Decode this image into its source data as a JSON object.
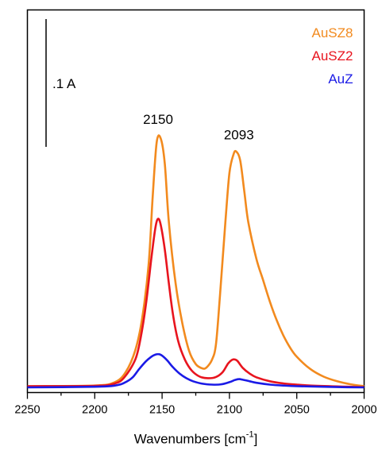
{
  "chart_data": {
    "type": "line",
    "xlabel": "Wavenumbers [cm",
    "xlabel_sup": "-1",
    "xlabel_end": "]",
    "ylabel": "",
    "xlim": [
      2250,
      2000
    ],
    "x_reversed": true,
    "ylim": [
      0,
      1
    ],
    "y_ticks_shown": false,
    "x_ticks": [
      2250,
      2200,
      2150,
      2100,
      2050,
      2000
    ],
    "x_tick_labels": [
      "2250",
      "2200",
      "2150",
      "2100",
      "2050",
      "2000"
    ],
    "legend_placement": "top-right",
    "scale_bar": {
      "label": ".1 A",
      "y_from": 0.66,
      "y_to": 0.96
    },
    "annotations": [
      {
        "text": "2150",
        "x": 2153,
        "y": 0.86
      },
      {
        "text": "2093",
        "x": 2093,
        "y": 0.81
      }
    ],
    "series": [
      {
        "name": "AuSZ8",
        "color": "#f28a1e",
        "x": [
          2250,
          2200,
          2185,
          2177,
          2170,
          2165,
          2160,
          2157,
          2154,
          2151,
          2148,
          2145,
          2140,
          2135,
          2130,
          2125,
          2120,
          2117,
          2113,
          2110,
          2107,
          2103,
          2100,
          2097,
          2095,
          2092,
          2089,
          2086,
          2080,
          2075,
          2070,
          2065,
          2060,
          2055,
          2050,
          2040,
          2030,
          2020,
          2010,
          2000
        ],
        "y": [
          0.004,
          0.006,
          0.017,
          0.05,
          0.12,
          0.22,
          0.4,
          0.62,
          0.8,
          0.812,
          0.73,
          0.54,
          0.34,
          0.21,
          0.12,
          0.076,
          0.062,
          0.065,
          0.09,
          0.14,
          0.3,
          0.54,
          0.7,
          0.76,
          0.77,
          0.74,
          0.64,
          0.54,
          0.42,
          0.35,
          0.28,
          0.22,
          0.17,
          0.13,
          0.1,
          0.06,
          0.035,
          0.02,
          0.01,
          0.004
        ]
      },
      {
        "name": "AuSZ2",
        "color": "#e8141e",
        "x": [
          2250,
          2200,
          2185,
          2178,
          2170,
          2166,
          2162,
          2158,
          2155,
          2153,
          2151,
          2148,
          2145,
          2142,
          2138,
          2133,
          2128,
          2122,
          2116,
          2110,
          2105,
          2101,
          2098,
          2096,
          2094,
          2090,
          2085,
          2080,
          2070,
          2060,
          2050,
          2040,
          2020,
          2000
        ],
        "y": [
          0.004,
          0.005,
          0.013,
          0.033,
          0.09,
          0.16,
          0.27,
          0.42,
          0.52,
          0.55,
          0.53,
          0.45,
          0.34,
          0.24,
          0.15,
          0.09,
          0.055,
          0.035,
          0.03,
          0.034,
          0.05,
          0.078,
          0.09,
          0.091,
          0.086,
          0.063,
          0.045,
          0.033,
          0.02,
          0.013,
          0.009,
          0.006,
          0.003,
          0.001
        ]
      },
      {
        "name": "AuZ",
        "color": "#1a1ae6",
        "x": [
          2250,
          2200,
          2185,
          2178,
          2172,
          2167,
          2162,
          2158,
          2155,
          2152,
          2149,
          2146,
          2142,
          2137,
          2132,
          2127,
          2120,
          2113,
          2106,
          2100,
          2096,
          2093,
          2090,
          2085,
          2080,
          2070,
          2060,
          2050,
          2040,
          2020,
          2000
        ],
        "y": [
          0.0,
          0.002,
          0.006,
          0.015,
          0.032,
          0.06,
          0.085,
          0.1,
          0.107,
          0.108,
          0.1,
          0.087,
          0.066,
          0.045,
          0.03,
          0.02,
          0.012,
          0.009,
          0.01,
          0.017,
          0.024,
          0.027,
          0.025,
          0.02,
          0.015,
          0.009,
          0.006,
          0.004,
          0.003,
          0.001,
          0.0
        ]
      }
    ]
  }
}
